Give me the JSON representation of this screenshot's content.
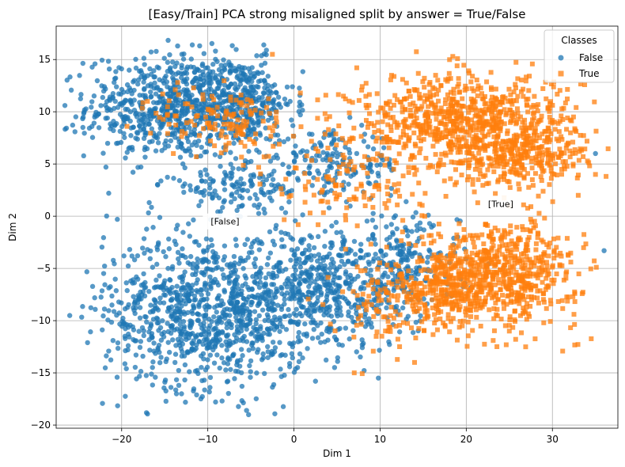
{
  "chart_data": {
    "type": "scatter",
    "title": "[Easy/Train] PCA strong misaligned split by answer = True/False",
    "xlabel": "Dim 1",
    "ylabel": "Dim 2",
    "xlim": [
      -27.6,
      37.6
    ],
    "ylim": [
      -20.3,
      18.2
    ],
    "xticks": [
      -20,
      -10,
      0,
      10,
      20,
      30
    ],
    "yticks": [
      -20,
      -15,
      -10,
      -5,
      0,
      5,
      10,
      15
    ],
    "grid": true,
    "legend": {
      "title": "Classes",
      "placement": "top-right",
      "entries": [
        "False",
        "True"
      ]
    },
    "colors": {
      "False": "#1f77b4",
      "True": "#ff7f0e"
    },
    "annotations": [
      {
        "text": "[False]",
        "x": -8,
        "y": -0.5
      },
      {
        "text": "[True]",
        "x": 24,
        "y": 1.2
      }
    ],
    "series": [
      {
        "name": "False",
        "marker": "circle",
        "clusters": [
          {
            "cx": -14,
            "cy": 10.5,
            "rx": 10,
            "ry": 5,
            "n": 700
          },
          {
            "cx": -6,
            "cy": 11,
            "rx": 6,
            "ry": 4,
            "n": 300
          },
          {
            "cx": -10,
            "cy": -9,
            "rx": 12,
            "ry": 7.5,
            "n": 1000
          },
          {
            "cx": 3,
            "cy": -7,
            "rx": 9,
            "ry": 6,
            "n": 450
          },
          {
            "cx": 12,
            "cy": -5,
            "rx": 7,
            "ry": 5,
            "n": 250
          },
          {
            "cx": -6,
            "cy": 3,
            "rx": 9,
            "ry": 2.5,
            "n": 150
          },
          {
            "cx": 5,
            "cy": 5,
            "rx": 8,
            "ry": 3,
            "n": 150
          }
        ],
        "outliers": [
          {
            "x": -24.5,
            "y": 8.5
          },
          {
            "x": -21.5,
            "y": 2.2
          },
          {
            "x": -20.5,
            "y": -0.3
          },
          {
            "x": -13.5,
            "y": 16.3
          },
          {
            "x": -11.8,
            "y": 16.4
          },
          {
            "x": -3.5,
            "y": 16.4
          },
          {
            "x": 35,
            "y": 6
          },
          {
            "x": 36,
            "y": -3.3
          },
          {
            "x": -5.5,
            "y": -18.6
          },
          {
            "x": 9.8,
            "y": -15.5
          },
          {
            "x": 2.5,
            "y": -15.8
          }
        ]
      },
      {
        "name": "True",
        "marker": "square",
        "clusters": [
          {
            "cx": 20,
            "cy": 9,
            "rx": 13,
            "ry": 4.5,
            "n": 800
          },
          {
            "cx": 26,
            "cy": 5.5,
            "rx": 8,
            "ry": 2.5,
            "n": 250
          },
          {
            "cx": 24,
            "cy": -5.5,
            "rx": 9,
            "ry": 5,
            "n": 650
          },
          {
            "cx": 17,
            "cy": -7,
            "rx": 5,
            "ry": 4,
            "n": 220
          },
          {
            "cx": -8,
            "cy": 9,
            "rx": 8,
            "ry": 3.5,
            "n": 130
          },
          {
            "cx": 7,
            "cy": 3,
            "rx": 9,
            "ry": 4,
            "n": 110
          },
          {
            "cx": 10,
            "cy": -8,
            "rx": 6,
            "ry": 4,
            "n": 90
          }
        ],
        "outliers": [
          {
            "x": -13.5,
            "y": 12.8
          },
          {
            "x": -17,
            "y": 11
          },
          {
            "x": -14.5,
            "y": 8.8
          },
          {
            "x": -14,
            "y": 6
          },
          {
            "x": 35,
            "y": 4
          },
          {
            "x": 25,
            "y": -11
          },
          {
            "x": 14,
            "y": -14
          },
          {
            "x": 7,
            "y": -15
          },
          {
            "x": -2.5,
            "y": 15.5
          },
          {
            "x": 33,
            "y": 2
          }
        ]
      }
    ]
  }
}
